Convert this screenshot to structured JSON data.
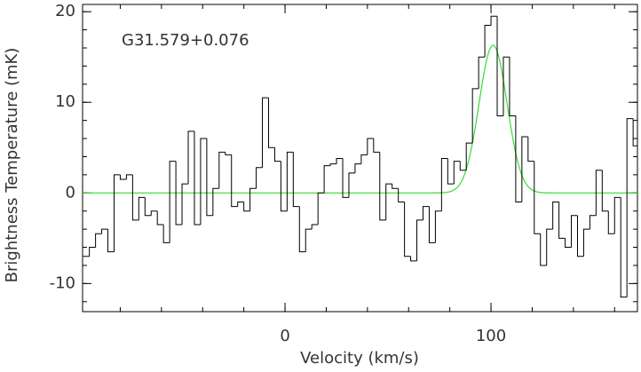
{
  "chart_data": {
    "type": "step",
    "annotation": "G31.579+0.076",
    "xlabel": "Velocity (km/s)",
    "ylabel": "Brightness Temperature (mK)",
    "xlim": [
      -98.3,
      171.1
    ],
    "ylim": [
      -13.1,
      20.8
    ],
    "xticks": [
      0,
      100
    ],
    "yticks": [
      -10,
      0,
      10,
      20
    ],
    "x": [
      -96.5,
      -93.5,
      -90.5,
      -87.5,
      -84.5,
      -81.5,
      -78.5,
      -75.5,
      -72.5,
      -69.5,
      -66.5,
      -63.5,
      -60.5,
      -57.5,
      -54.5,
      -51.5,
      -48.5,
      -45.5,
      -42.5,
      -39.5,
      -36.5,
      -33.5,
      -30.5,
      -27.5,
      -24.5,
      -21.5,
      -18.5,
      -15.5,
      -12.5,
      -9.5,
      -6.5,
      -3.5,
      -0.5,
      2.5,
      5.5,
      8.5,
      11.5,
      14.5,
      17.5,
      20.5,
      23.5,
      26.5,
      29.5,
      32.5,
      35.5,
      38.5,
      41.5,
      44.5,
      47.5,
      50.5,
      53.5,
      56.5,
      59.5,
      62.5,
      65.5,
      68.5,
      71.5,
      74.5,
      77.5,
      80.5,
      83.5,
      86.5,
      89.5,
      92.5,
      95.5,
      98.5,
      101.5,
      104.5,
      107.5,
      110.5,
      113.5,
      116.5,
      119.5,
      122.5,
      125.5,
      128.5,
      131.5,
      134.5,
      137.5,
      140.5,
      143.5,
      146.5,
      149.5,
      152.5,
      155.5,
      158.5,
      161.5,
      164.5,
      167.5,
      170.5
    ],
    "values": [
      -7,
      -6,
      -4.5,
      -4,
      -6.5,
      2,
      1.5,
      2,
      -3,
      -0.5,
      -2.5,
      -2,
      -3.5,
      -5.5,
      3.5,
      -3.5,
      1,
      6.8,
      -3.5,
      6,
      -2.5,
      0.5,
      4.5,
      4.2,
      -1.5,
      -1,
      -2,
      0.5,
      2.8,
      10.5,
      5,
      3.5,
      -2,
      4.5,
      -1.5,
      -6.5,
      -4,
      -3.5,
      0,
      3,
      3.2,
      3.8,
      -0.5,
      2.2,
      3.2,
      4.2,
      6,
      4.5,
      -3,
      1,
      0.5,
      -1,
      -7,
      -7.5,
      -3,
      -1.5,
      -5.5,
      -2,
      3.8,
      1,
      3.5,
      2.5,
      5.5,
      11.5,
      15,
      18.5,
      19.5,
      8.5,
      15,
      8.5,
      -1,
      6.2,
      3.5,
      -4.5,
      -8,
      -4,
      -1,
      -5,
      -6,
      -2.5,
      -7,
      -4,
      -2.5,
      2.5,
      -2,
      -4.5,
      -0.5,
      -11.5,
      8.2,
      5.2
    ],
    "color": "#000000",
    "fit": {
      "type": "gaussian",
      "amplitude": 16.3,
      "center": 101,
      "fwhm": 16,
      "color": "#33dd33"
    }
  }
}
